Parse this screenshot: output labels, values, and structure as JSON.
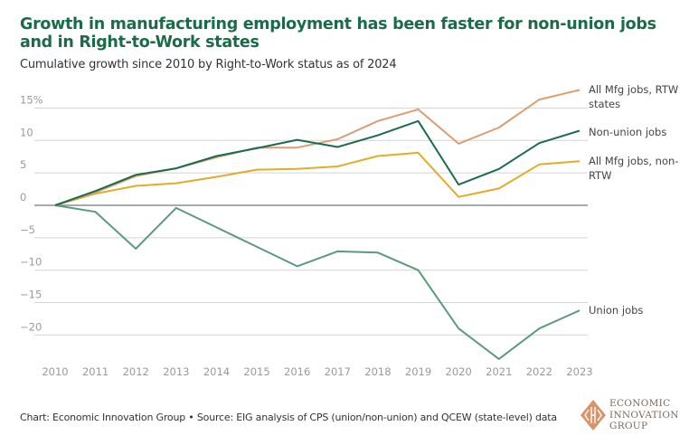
{
  "title": "Growth in manufacturing employment has been faster for non-union jobs and in Right-to-Work states",
  "subtitle": "Cumulative growth since 2010 by Right-to-Work status as of 2024",
  "source": "Chart: Economic Innovation Group • Source: EIG analysis of CPS (union/non-union) and QCEW (state-level) data",
  "logo": {
    "icon": "eig-diamond-logo-icon",
    "lines": [
      "ECONOMIC",
      "INNOVATION",
      "GROUP"
    ],
    "color": "#d9946a"
  },
  "chart_data": {
    "type": "line",
    "title": "Growth in manufacturing employment has been faster for non-union jobs and in Right-to-Work states",
    "subtitle": "Cumulative growth since 2010 by Right-to-Work status as of 2024",
    "xlabel": "",
    "ylabel": "",
    "x": [
      2010,
      2011,
      2012,
      2013,
      2014,
      2015,
      2016,
      2017,
      2018,
      2019,
      2020,
      2021,
      2022,
      2023
    ],
    "ylim": [
      -25,
      17
    ],
    "yticks": [
      15,
      10,
      5,
      0,
      -5,
      -10,
      -15,
      -20
    ],
    "ytick_labels": [
      "15%",
      "10",
      "5",
      "0",
      "−5",
      "−10",
      "−15",
      "−20"
    ],
    "xtick_labels": [
      "2010",
      "2011",
      "2012",
      "2013",
      "2014",
      "2015",
      "2016",
      "2017",
      "2018",
      "2019",
      "2020",
      "2021",
      "2022",
      "2023"
    ],
    "grid": true,
    "legend": "direct labels at line ends (right)",
    "series": [
      {
        "name": "All Mfg jobs, RTW states",
        "label_lines": [
          "All Mfg jobs, RTW",
          "states"
        ],
        "color": "#dd9c74",
        "values": [
          0,
          2.0,
          4.5,
          5.7,
          7.4,
          8.9,
          8.9,
          10.2,
          13.0,
          14.8,
          9.5,
          12.0,
          16.3,
          17.8
        ]
      },
      {
        "name": "Non-union jobs",
        "label_lines": [
          "Non-union jobs"
        ],
        "color": "#1c6b4b",
        "values": [
          0,
          2.2,
          4.7,
          5.7,
          7.6,
          8.8,
          10.1,
          9.0,
          10.8,
          13.0,
          3.2,
          5.6,
          9.6,
          11.5
        ]
      },
      {
        "name": "All Mfg jobs, non-RTW",
        "label_lines": [
          "All Mfg jobs, non-",
          "RTW"
        ],
        "color": "#e2ac2a",
        "values": [
          0,
          1.8,
          3.0,
          3.4,
          4.4,
          5.5,
          5.6,
          6.0,
          7.6,
          8.1,
          1.3,
          2.6,
          6.3,
          6.8
        ]
      },
      {
        "name": "Union jobs",
        "label_lines": [
          "Union jobs"
        ],
        "color": "#5a9a7e",
        "values": [
          0,
          -1.0,
          -6.7,
          -0.4,
          -3.4,
          -6.4,
          -9.4,
          -7.1,
          -7.3,
          -10.0,
          -19.0,
          -23.7,
          -19.0,
          -16.2
        ]
      }
    ]
  }
}
